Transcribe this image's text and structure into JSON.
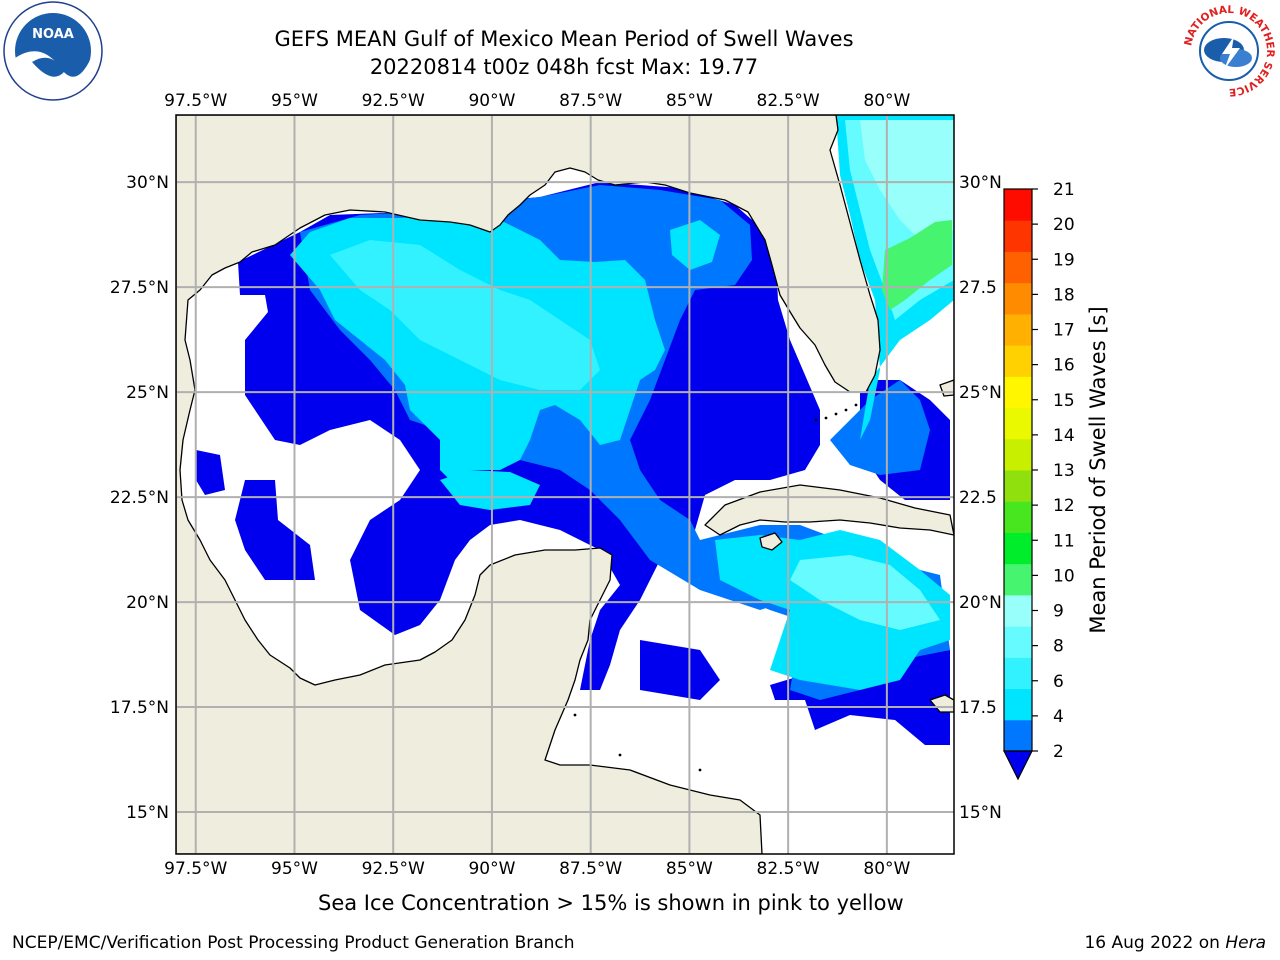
{
  "title_line1": "GEFS MEAN Gulf of Mexico Mean Period of Swell Waves",
  "title_line2": "20220814 t00z 048h fcst   Max: 19.77",
  "logos": {
    "left": {
      "icon": "noaa-logo",
      "text": "NOAA"
    },
    "right": {
      "icon": "nws-logo",
      "ring_text": "NATIONAL WEATHER SERVICE"
    }
  },
  "map": {
    "lon_labels": [
      "97.5°W",
      "95°W",
      "92.5°W",
      "90°W",
      "87.5°W",
      "85°W",
      "82.5°W",
      "80°W"
    ],
    "lon_values": [
      -97.5,
      -95,
      -92.5,
      -90,
      -87.5,
      -85,
      -82.5,
      -80
    ],
    "lat_labels_left": [
      "30°N",
      "27.5°N",
      "25°N",
      "22.5°N",
      "20°N",
      "17.5°N",
      "15°N"
    ],
    "lat_labels_right": [
      "30°N",
      "27.5",
      "25°N",
      "22.5",
      "20°N",
      "17.5",
      "15°N"
    ],
    "lat_values": [
      30,
      27.5,
      25,
      22.5,
      20,
      17.5,
      15
    ],
    "extent": {
      "lon_min": -98,
      "lon_max": -78.3,
      "lat_min": 14,
      "lat_max": 31.6
    },
    "colors": {
      "land": "#efedde",
      "ocean_no_swell": "#ffffff",
      "grid": "#b0b0b0",
      "coast": "#000000"
    }
  },
  "colorbar": {
    "label": "Mean Period of Swell Waves [s]",
    "ticks": [
      "2",
      "4",
      "6",
      "8",
      "9",
      "10",
      "11",
      "12",
      "13",
      "14",
      "15",
      "16",
      "17",
      "18",
      "19",
      "20",
      "21"
    ],
    "colors": [
      "#0077ff",
      "#00e5ff",
      "#33f2ff",
      "#66fcff",
      "#99fffb",
      "#46f46f",
      "#00ed2c",
      "#48e61f",
      "#90e00e",
      "#c8ef00",
      "#eaf800",
      "#fff600",
      "#ffd100",
      "#ffb000",
      "#ff8c00",
      "#ff6000",
      "#ff3500",
      "#ff0c00"
    ],
    "under_color": "#0000ee"
  },
  "bottom_note": "Sea Ice Concentration > 15% is shown in pink to yellow",
  "footer_left": "NCEP/EMC/Verification Post Processing Product Generation Branch",
  "footer_right_date": "16 Aug 2022 on ",
  "footer_right_host": "Hera"
}
